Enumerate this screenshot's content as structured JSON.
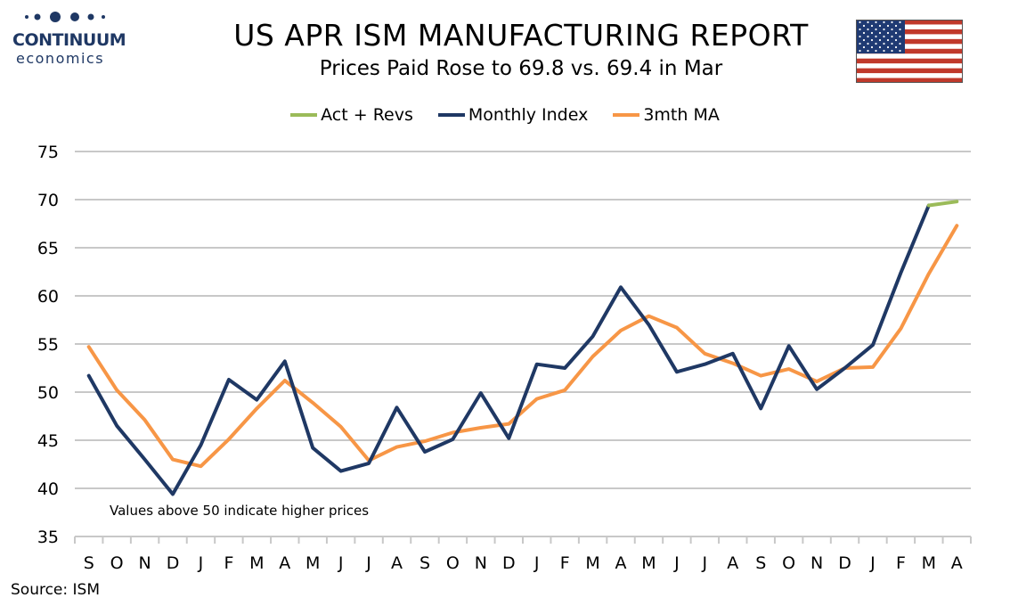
{
  "logo": {
    "name": "CONTINUUM",
    "sub": "economics"
  },
  "header": {
    "title": "US APR ISM MANUFACTURING REPORT",
    "subtitle": "Prices Paid Rose to 69.8 vs. 69.4 in Mar"
  },
  "source": "Source: ISM",
  "colors": {
    "act": "#9bbb59",
    "monthly": "#1f3864",
    "ma": "#f79646",
    "grid": "#c8c8c8",
    "logo": "#1f3864"
  },
  "chart_data": {
    "type": "line",
    "categories": [
      "S",
      "O",
      "N",
      "D",
      "J",
      "F",
      "M",
      "A",
      "M",
      "J",
      "J",
      "A",
      "S",
      "O",
      "N",
      "D",
      "J",
      "F",
      "M",
      "A",
      "M",
      "J",
      "J",
      "A",
      "S",
      "O",
      "N",
      "D",
      "J",
      "F",
      "M",
      "A"
    ],
    "series": [
      {
        "name": "Act + Revs",
        "values": [
          null,
          null,
          null,
          null,
          null,
          null,
          null,
          null,
          null,
          null,
          null,
          null,
          null,
          null,
          null,
          null,
          null,
          null,
          null,
          null,
          null,
          null,
          null,
          null,
          null,
          null,
          null,
          null,
          null,
          null,
          69.4,
          69.8
        ]
      },
      {
        "name": "Monthly Index",
        "values": [
          51.7,
          46.5,
          43.0,
          39.4,
          44.5,
          51.3,
          49.2,
          53.2,
          44.2,
          41.8,
          42.6,
          48.4,
          43.8,
          45.1,
          49.9,
          45.2,
          52.9,
          52.5,
          55.8,
          60.9,
          57.0,
          52.1,
          52.9,
          54.0,
          48.3,
          54.8,
          50.3,
          52.5,
          54.9,
          62.4,
          69.4,
          null
        ]
      },
      {
        "name": "3mth MA",
        "values": [
          54.7,
          50.2,
          47.1,
          43.0,
          42.3,
          45.1,
          48.3,
          51.2,
          48.9,
          46.4,
          42.9,
          44.3,
          44.9,
          45.8,
          46.3,
          46.7,
          49.3,
          50.2,
          53.7,
          56.4,
          57.9,
          56.7,
          54.0,
          53.0,
          51.7,
          52.4,
          51.1,
          52.5,
          52.6,
          56.6,
          62.3,
          67.3
        ]
      }
    ],
    "ylim": [
      35,
      75
    ],
    "yticks": [
      35,
      40,
      45,
      50,
      55,
      60,
      65,
      70,
      75
    ],
    "annotation": "Values above 50 indicate higher prices",
    "grid": true,
    "legend_position": "top-center"
  }
}
